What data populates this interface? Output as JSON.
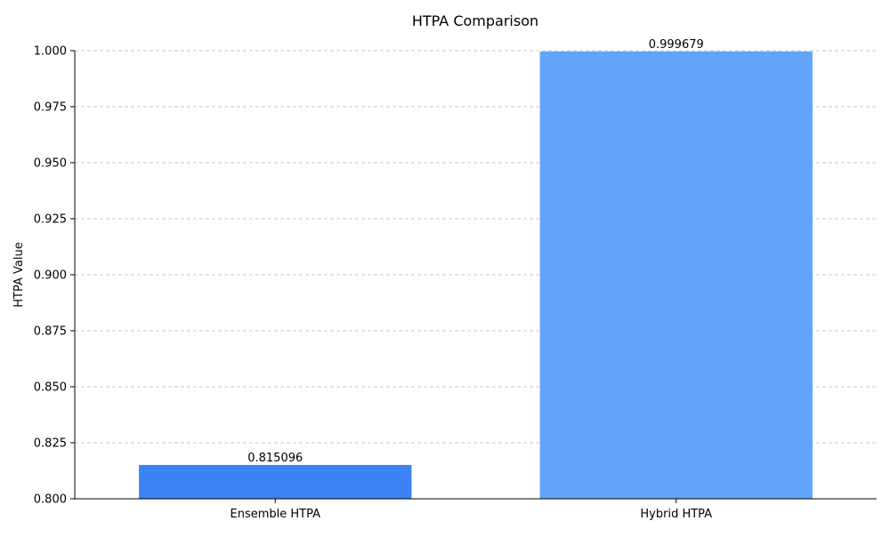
{
  "chart_data": {
    "type": "bar",
    "title": "HTPA Comparison",
    "xlabel": "",
    "ylabel": "HTPA Value",
    "categories": [
      "Ensemble HTPA",
      "Hybrid HTPA"
    ],
    "values": [
      0.815096,
      0.999679
    ],
    "value_labels": [
      "0.815096",
      "0.999679"
    ],
    "ylim": [
      0.8,
      1.0
    ],
    "yticks": [
      "0.800",
      "0.825",
      "0.850",
      "0.875",
      "0.900",
      "0.925",
      "0.950",
      "0.975",
      "1.000"
    ],
    "bar_colors": [
      "#3b82f6",
      "#60a5fa"
    ],
    "grid": "y-dashed",
    "legend": "none"
  }
}
